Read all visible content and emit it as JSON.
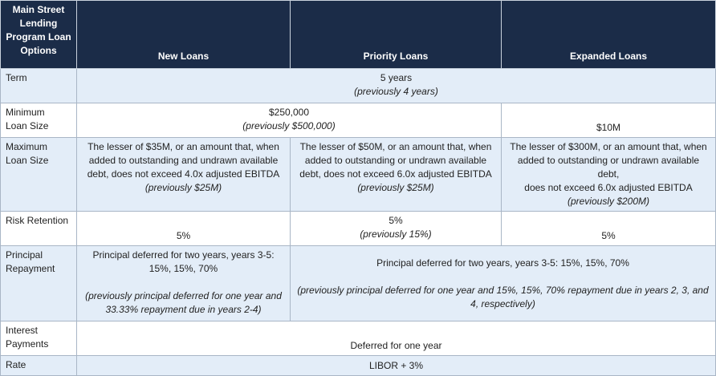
{
  "header": {
    "corner": [
      "Main Street",
      "Lending",
      "Program Loan",
      "Options"
    ],
    "col_new": "New Loans",
    "col_priority": "Priority Loans",
    "col_expanded": "Expanded Loans"
  },
  "rows": {
    "term": {
      "label": "Term",
      "value": "5 years",
      "previous": "(previously 4 years)"
    },
    "min_loan": {
      "label": [
        "Minimum",
        "Loan Size"
      ],
      "shared_value": "$250,000",
      "shared_previous": "(previously $500,000)",
      "expanded_value": "$10M"
    },
    "max_loan": {
      "label": [
        "Maximum",
        "Loan Size"
      ],
      "new": {
        "lines": [
          "The lesser of $35M, or an amount that, when",
          "added to outstanding and undrawn available",
          "debt, does not exceed 4.0x adjusted EBITDA"
        ],
        "previous": "(previously $25M)"
      },
      "priority": {
        "lines": [
          "The lesser of $50M, or an amount that, when",
          "added to outstanding or undrawn available",
          "debt, does not exceed 6.0x adjusted EBITDA"
        ],
        "previous": "(previously $25M)"
      },
      "expanded": {
        "lines": [
          "The lesser of $300M, or an amount that, when",
          "added to outstanding or undrawn available debt,",
          "does not exceed 6.0x adjusted EBITDA"
        ],
        "previous": "(previously $200M)"
      }
    },
    "risk": {
      "label": "Risk Retention",
      "new": "5%",
      "priority": "5%",
      "priority_previous": "(previously 15%)",
      "expanded": "5%"
    },
    "principal": {
      "label": [
        "Principal",
        "Repayment"
      ],
      "new": {
        "lines": [
          "Principal deferred for two years, years 3-5:",
          "15%, 15%, 70%"
        ],
        "previous": [
          "(previously principal deferred for one year and",
          "33.33% repayment due in years 2-4)"
        ]
      },
      "shared": {
        "value": "Principal deferred for two years, years 3-5: 15%, 15%, 70%",
        "previous": [
          "(previously principal deferred for one year and 15%, 15%, 70% repayment due in years 2, 3, and",
          "4, respectively)"
        ]
      }
    },
    "interest": {
      "label": [
        "Interest",
        "Payments"
      ],
      "value": "Deferred for one year"
    },
    "rate": {
      "label": "Rate",
      "value": "LIBOR + 3%"
    }
  },
  "colors": {
    "header_bg": "#1b2c48",
    "alt_row_bg": "#e3edf8",
    "border": "#a9b6c6"
  }
}
